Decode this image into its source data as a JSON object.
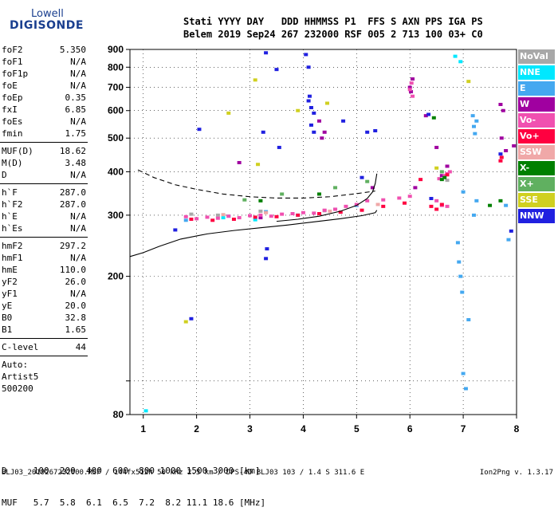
{
  "logo": {
    "line1": "Lowell",
    "line2": "DIGISONDE"
  },
  "header": {
    "line1": "Stati YYYY DAY   DDD HHMMSS P1  FFS S AXN PPS IGA PS",
    "line2": "Belem 2019 Sep24 267 232000 RSF 005 2 713 100 03+ C0"
  },
  "params_group1": [
    {
      "k": "foF2",
      "v": "5.350"
    },
    {
      "k": "foF1",
      "v": "N/A"
    },
    {
      "k": "foF1p",
      "v": "N/A"
    },
    {
      "k": "foE",
      "v": "N/A"
    },
    {
      "k": "foEp",
      "v": "0.35"
    },
    {
      "k": "fxI",
      "v": "6.85"
    },
    {
      "k": "foEs",
      "v": "N/A"
    },
    {
      "k": "fmin",
      "v": "1.75"
    }
  ],
  "params_group2": [
    {
      "k": "MUF(D)",
      "v": "18.62"
    },
    {
      "k": "M(D)",
      "v": "3.48"
    },
    {
      "k": "D",
      "v": "N/A"
    }
  ],
  "params_group3": [
    {
      "k": "h`F",
      "v": "287.0"
    },
    {
      "k": "h`F2",
      "v": "287.0"
    },
    {
      "k": "h`E",
      "v": "N/A"
    },
    {
      "k": "h`Es",
      "v": "N/A"
    }
  ],
  "params_group4": [
    {
      "k": "hmF2",
      "v": "297.2"
    },
    {
      "k": "hmF1",
      "v": "N/A"
    },
    {
      "k": "hmE",
      "v": "110.0"
    },
    {
      "k": "yF2",
      "v": "26.0"
    },
    {
      "k": "yF1",
      "v": "N/A"
    },
    {
      "k": "yE",
      "v": "20.0"
    },
    {
      "k": "B0",
      "v": "32.8"
    },
    {
      "k": "B1",
      "v": "1.65"
    }
  ],
  "params_group5": [
    {
      "k": "C-level",
      "v": "44"
    }
  ],
  "autotext": [
    "Auto:",
    "Artist5",
    "500200"
  ],
  "legend": [
    {
      "label": "NoVal",
      "color": "#a8a8a8"
    },
    {
      "label": "NNE",
      "color": "#00e8ff"
    },
    {
      "label": "E",
      "color": "#44a8f0"
    },
    {
      "label": "W",
      "color": "#a000a0"
    },
    {
      "label": "Vo-",
      "color": "#f050b0"
    },
    {
      "label": "Vo+",
      "color": "#ff0040"
    },
    {
      "label": "SSW",
      "color": "#f0a8a8"
    },
    {
      "label": "X-",
      "color": "#008000"
    },
    {
      "label": "X+",
      "color": "#60b060"
    },
    {
      "label": "SSE",
      "color": "#d0d020"
    },
    {
      "label": "NNW",
      "color": "#2020e0"
    }
  ],
  "footer": {
    "row1": "D     100  200  400  600  800 1000 1500 3000 [km]",
    "row2": "MUF   5.7  5.8  6.1  6.5  7.2  8.2 11.1 18.6 [MHz]",
    "bottom": "BLJ03_2019267232000.RSF / 144fx512h 50 kHz 2.5 km / DPS-4D BLJ03 103 / 1.4 S 311.6 E",
    "version": "Ion2Png v. 1.3.17"
  },
  "chart_data": {
    "type": "scatter",
    "title": "",
    "xlabel": "",
    "ylabel": "",
    "xlim": [
      0.75,
      8
    ],
    "ylim": [
      80,
      900
    ],
    "y_scale": "log",
    "x_ticks": [
      1,
      2,
      3,
      4,
      5,
      6,
      7,
      8
    ],
    "y_ticks": [
      80,
      100,
      200,
      300,
      400,
      500,
      600,
      700,
      800,
      900
    ],
    "y_tick_labels": [
      "80",
      "",
      "200",
      "300",
      "400",
      "500",
      "600",
      "700",
      "800",
      "900"
    ],
    "trace_solid_lower": {
      "x": [
        0.75,
        1.0,
        1.3,
        1.7,
        2.2,
        2.7,
        3.2,
        3.7,
        4.2,
        4.7,
        5.1,
        5.35,
        5.38
      ],
      "y": [
        228,
        234,
        244,
        256,
        265,
        271,
        276,
        281,
        287,
        293,
        299,
        305,
        310
      ]
    },
    "trace_solid_upper": {
      "x": [
        3.5,
        3.9,
        4.3,
        4.7,
        5.0,
        5.2,
        5.3,
        5.35,
        5.38
      ],
      "y": [
        288,
        292,
        298,
        308,
        320,
        335,
        350,
        370,
        395
      ]
    },
    "trace_dashed": {
      "x": [
        0.9,
        1.2,
        1.6,
        2.0,
        2.5,
        3.0,
        3.5,
        4.0,
        4.5,
        5.0,
        5.35
      ],
      "y": [
        405,
        385,
        367,
        356,
        345,
        339,
        336,
        336,
        339,
        346,
        352
      ]
    },
    "echo_series": [
      {
        "name": "NoVal",
        "points": [
          [
            1.9,
            302
          ],
          [
            2.4,
            300
          ],
          [
            3.2,
            308
          ],
          [
            4.4,
            309
          ],
          [
            6.7,
            378
          ]
        ]
      },
      {
        "name": "NNE",
        "points": [
          [
            1.05,
            82
          ],
          [
            2.5,
            295
          ],
          [
            3.1,
            291
          ],
          [
            3.9,
            300
          ],
          [
            6.85,
            860
          ],
          [
            6.95,
            830
          ]
        ]
      },
      {
        "name": "E",
        "points": [
          [
            1.8,
            290
          ],
          [
            2.6,
            298
          ],
          [
            3.3,
            307
          ],
          [
            4.6,
            312
          ],
          [
            5.0,
            320
          ],
          [
            7.0,
            350
          ],
          [
            6.9,
            250
          ],
          [
            6.92,
            220
          ],
          [
            6.95,
            200
          ],
          [
            6.98,
            180
          ],
          [
            7.2,
            540
          ],
          [
            7.18,
            580
          ],
          [
            7.25,
            560
          ],
          [
            7.22,
            515
          ],
          [
            7.25,
            330
          ],
          [
            7.2,
            300
          ],
          [
            7.1,
            150
          ],
          [
            7.0,
            105
          ],
          [
            7.05,
            95
          ],
          [
            7.8,
            320
          ],
          [
            7.85,
            255
          ]
        ]
      },
      {
        "name": "W",
        "points": [
          [
            2.8,
            425
          ],
          [
            3.2,
            295
          ],
          [
            4.35,
            500
          ],
          [
            4.4,
            520
          ],
          [
            4.3,
            560
          ],
          [
            5.3,
            360
          ],
          [
            6.0,
            700
          ],
          [
            6.05,
            740
          ],
          [
            6.02,
            680
          ],
          [
            6.1,
            360
          ],
          [
            6.3,
            580
          ],
          [
            6.5,
            470
          ],
          [
            6.6,
            390
          ],
          [
            6.7,
            415
          ],
          [
            7.7,
            625
          ],
          [
            7.75,
            600
          ],
          [
            7.72,
            500
          ],
          [
            7.8,
            460
          ],
          [
            7.95,
            475
          ]
        ]
      },
      {
        "name": "Vo-",
        "points": [
          [
            1.8,
            297
          ],
          [
            2.0,
            293
          ],
          [
            2.2,
            296
          ],
          [
            2.4,
            294
          ],
          [
            2.6,
            298
          ],
          [
            2.8,
            295
          ],
          [
            3.0,
            299
          ],
          [
            3.2,
            300
          ],
          [
            3.4,
            298
          ],
          [
            3.6,
            302
          ],
          [
            3.8,
            303
          ],
          [
            4.0,
            305
          ],
          [
            4.2,
            304
          ],
          [
            4.4,
            310
          ],
          [
            4.6,
            312
          ],
          [
            4.8,
            318
          ],
          [
            5.0,
            322
          ],
          [
            5.2,
            330
          ],
          [
            5.5,
            332
          ],
          [
            5.8,
            336
          ],
          [
            6.0,
            340
          ],
          [
            6.0,
            690
          ],
          [
            6.03,
            720
          ],
          [
            6.05,
            660
          ],
          [
            6.5,
            330
          ],
          [
            6.6,
            320
          ],
          [
            6.7,
            318
          ],
          [
            6.55,
            382
          ],
          [
            6.65,
            390
          ],
          [
            6.7,
            395
          ],
          [
            6.75,
            400
          ]
        ]
      },
      {
        "name": "Vo+",
        "points": [
          [
            1.9,
            292
          ],
          [
            2.3,
            290
          ],
          [
            2.7,
            292
          ],
          [
            3.1,
            296
          ],
          [
            3.5,
            297
          ],
          [
            3.9,
            300
          ],
          [
            4.3,
            303
          ],
          [
            4.7,
            306
          ],
          [
            5.1,
            310
          ],
          [
            5.5,
            318
          ],
          [
            5.9,
            325
          ],
          [
            6.2,
            380
          ],
          [
            6.4,
            318
          ],
          [
            6.5,
            312
          ],
          [
            6.6,
            322
          ],
          [
            6.7,
            392
          ],
          [
            7.7,
            430
          ],
          [
            7.72,
            440
          ]
        ]
      },
      {
        "name": "SSW",
        "points": [
          [
            2.5,
            301
          ],
          [
            3.3,
            305
          ],
          [
            4.5,
            308
          ],
          [
            5.4,
            322
          ]
        ]
      },
      {
        "name": "X-",
        "points": [
          [
            3.2,
            330
          ],
          [
            4.3,
            345
          ],
          [
            6.45,
            572
          ],
          [
            6.6,
            380
          ],
          [
            6.65,
            385
          ],
          [
            7.7,
            330
          ],
          [
            7.5,
            320
          ]
        ]
      },
      {
        "name": "X+",
        "points": [
          [
            2.9,
            332
          ],
          [
            3.6,
            345
          ],
          [
            4.6,
            360
          ],
          [
            5.2,
            375
          ],
          [
            6.6,
            400
          ]
        ]
      },
      {
        "name": "SSE",
        "points": [
          [
            1.8,
            148
          ],
          [
            2.6,
            590
          ],
          [
            3.1,
            735
          ],
          [
            3.15,
            420
          ],
          [
            3.9,
            600
          ],
          [
            4.45,
            630
          ],
          [
            6.5,
            410
          ],
          [
            7.1,
            728
          ]
        ]
      },
      {
        "name": "NNW",
        "points": [
          [
            1.6,
            272
          ],
          [
            1.9,
            151
          ],
          [
            2.05,
            530
          ],
          [
            3.3,
            880
          ],
          [
            3.5,
            788
          ],
          [
            3.3,
            225
          ],
          [
            3.32,
            240
          ],
          [
            3.25,
            520
          ],
          [
            3.55,
            470
          ],
          [
            4.05,
            870
          ],
          [
            4.1,
            800
          ],
          [
            4.12,
            660
          ],
          [
            4.1,
            640
          ],
          [
            4.15,
            612
          ],
          [
            4.2,
            590
          ],
          [
            4.15,
            545
          ],
          [
            4.2,
            520
          ],
          [
            4.75,
            560
          ],
          [
            5.1,
            385
          ],
          [
            5.2,
            520
          ],
          [
            5.35,
            525
          ],
          [
            6.35,
            585
          ],
          [
            6.4,
            335
          ],
          [
            7.7,
            450
          ],
          [
            7.9,
            270
          ]
        ]
      }
    ]
  }
}
